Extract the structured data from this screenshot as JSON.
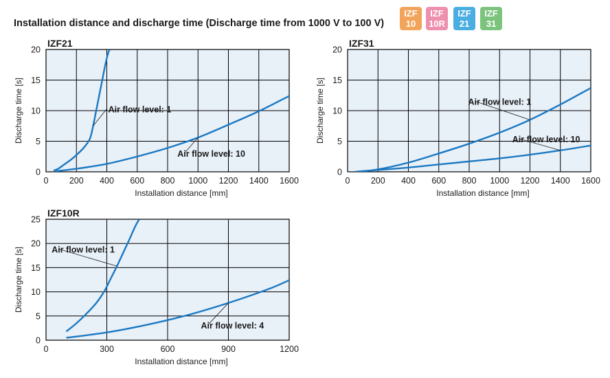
{
  "title": "Installation distance and discharge time (Discharge time from 1000 V to 100 V)",
  "badges": [
    {
      "line1": "IZF",
      "line2": "10",
      "color": "#F2A45A"
    },
    {
      "line1": "IZF",
      "line2": "10R",
      "color": "#EE8FAE"
    },
    {
      "line1": "IZF",
      "line2": "21",
      "color": "#4AAEE3"
    },
    {
      "line1": "IZF",
      "line2": "31",
      "color": "#7CC47E"
    }
  ],
  "colors": {
    "plot_bg": "#E8F0F8",
    "line": "#1A78C2",
    "grid": "#000000"
  },
  "chart_data": [
    {
      "type": "line",
      "title": "IZF21",
      "xlabel": "Installation distance [mm]",
      "ylabel": "Discharge time [s]",
      "xlim": [
        0,
        1600
      ],
      "ylim": [
        0,
        20
      ],
      "xticks": [
        0,
        200,
        400,
        600,
        800,
        1000,
        1200,
        1400,
        1600
      ],
      "yticks": [
        0,
        5,
        10,
        15,
        20
      ],
      "grid": true,
      "series": [
        {
          "name": "Air flow level: 1",
          "x": [
            50,
            80,
            120,
            170,
            220,
            260,
            290,
            310,
            330,
            350,
            370,
            390,
            410,
            420
          ],
          "y": [
            0.2,
            0.5,
            1.2,
            2.1,
            3.2,
            4.3,
            5.5,
            7.5,
            10,
            12.5,
            15,
            17.5,
            19.5,
            20
          ]
        },
        {
          "name": "Air flow level: 10",
          "x": [
            60,
            200,
            400,
            600,
            800,
            1000,
            1200,
            1400,
            1600
          ],
          "y": [
            0.1,
            0.5,
            1.3,
            2.5,
            3.9,
            5.6,
            7.7,
            9.9,
            12.4
          ]
        }
      ],
      "annotations": [
        {
          "text": "Air flow level: 1",
          "series": 0
        },
        {
          "text": "Air flow level: 10",
          "series": 1
        }
      ]
    },
    {
      "type": "line",
      "title": "IZF31",
      "xlabel": "Installation distance [mm]",
      "ylabel": "Discharge time [s]",
      "xlim": [
        0,
        1600
      ],
      "ylim": [
        0,
        20
      ],
      "xticks": [
        0,
        200,
        400,
        600,
        800,
        1000,
        1200,
        1400,
        1600
      ],
      "yticks": [
        0,
        5,
        10,
        15,
        20
      ],
      "grid": true,
      "series": [
        {
          "name": "Air flow level: 1",
          "x": [
            50,
            200,
            400,
            600,
            800,
            1000,
            1200,
            1400,
            1600
          ],
          "y": [
            0,
            0.4,
            1.5,
            3.0,
            4.6,
            6.4,
            8.5,
            11.0,
            13.7
          ]
        },
        {
          "name": "Air flow level: 10",
          "x": [
            50,
            200,
            400,
            600,
            800,
            1000,
            1200,
            1400,
            1600
          ],
          "y": [
            0,
            0.3,
            0.7,
            1.2,
            1.7,
            2.2,
            2.8,
            3.5,
            4.3
          ]
        }
      ],
      "annotations": [
        {
          "text": "Air flow level: 1",
          "series": 0
        },
        {
          "text": "Air flow level: 10",
          "series": 1
        }
      ]
    },
    {
      "type": "line",
      "title": "IZF10R",
      "xlabel": "Installation distance [mm]",
      "ylabel": "Discharge time [s]",
      "xlim": [
        0,
        1200
      ],
      "ylim": [
        0,
        25
      ],
      "xticks": [
        0,
        300,
        600,
        900,
        1200
      ],
      "yticks": [
        0,
        5,
        10,
        15,
        20,
        25
      ],
      "grid": true,
      "series": [
        {
          "name": "Air flow level: 1",
          "x": [
            100,
            150,
            200,
            250,
            290,
            320,
            350,
            380,
            410,
            440,
            460
          ],
          "y": [
            1.8,
            3.5,
            5.5,
            7.8,
            10.3,
            12.8,
            15.3,
            18.0,
            20.7,
            23.5,
            25
          ]
        },
        {
          "name": "Air flow level: 4",
          "x": [
            100,
            300,
            500,
            700,
            900,
            1100,
            1200
          ],
          "y": [
            0.5,
            1.6,
            3.2,
            5.2,
            7.7,
            10.6,
            12.4
          ]
        }
      ],
      "annotations": [
        {
          "text": "Air flow level: 1",
          "series": 0
        },
        {
          "text": "Air flow level: 4",
          "series": 1
        }
      ]
    }
  ]
}
